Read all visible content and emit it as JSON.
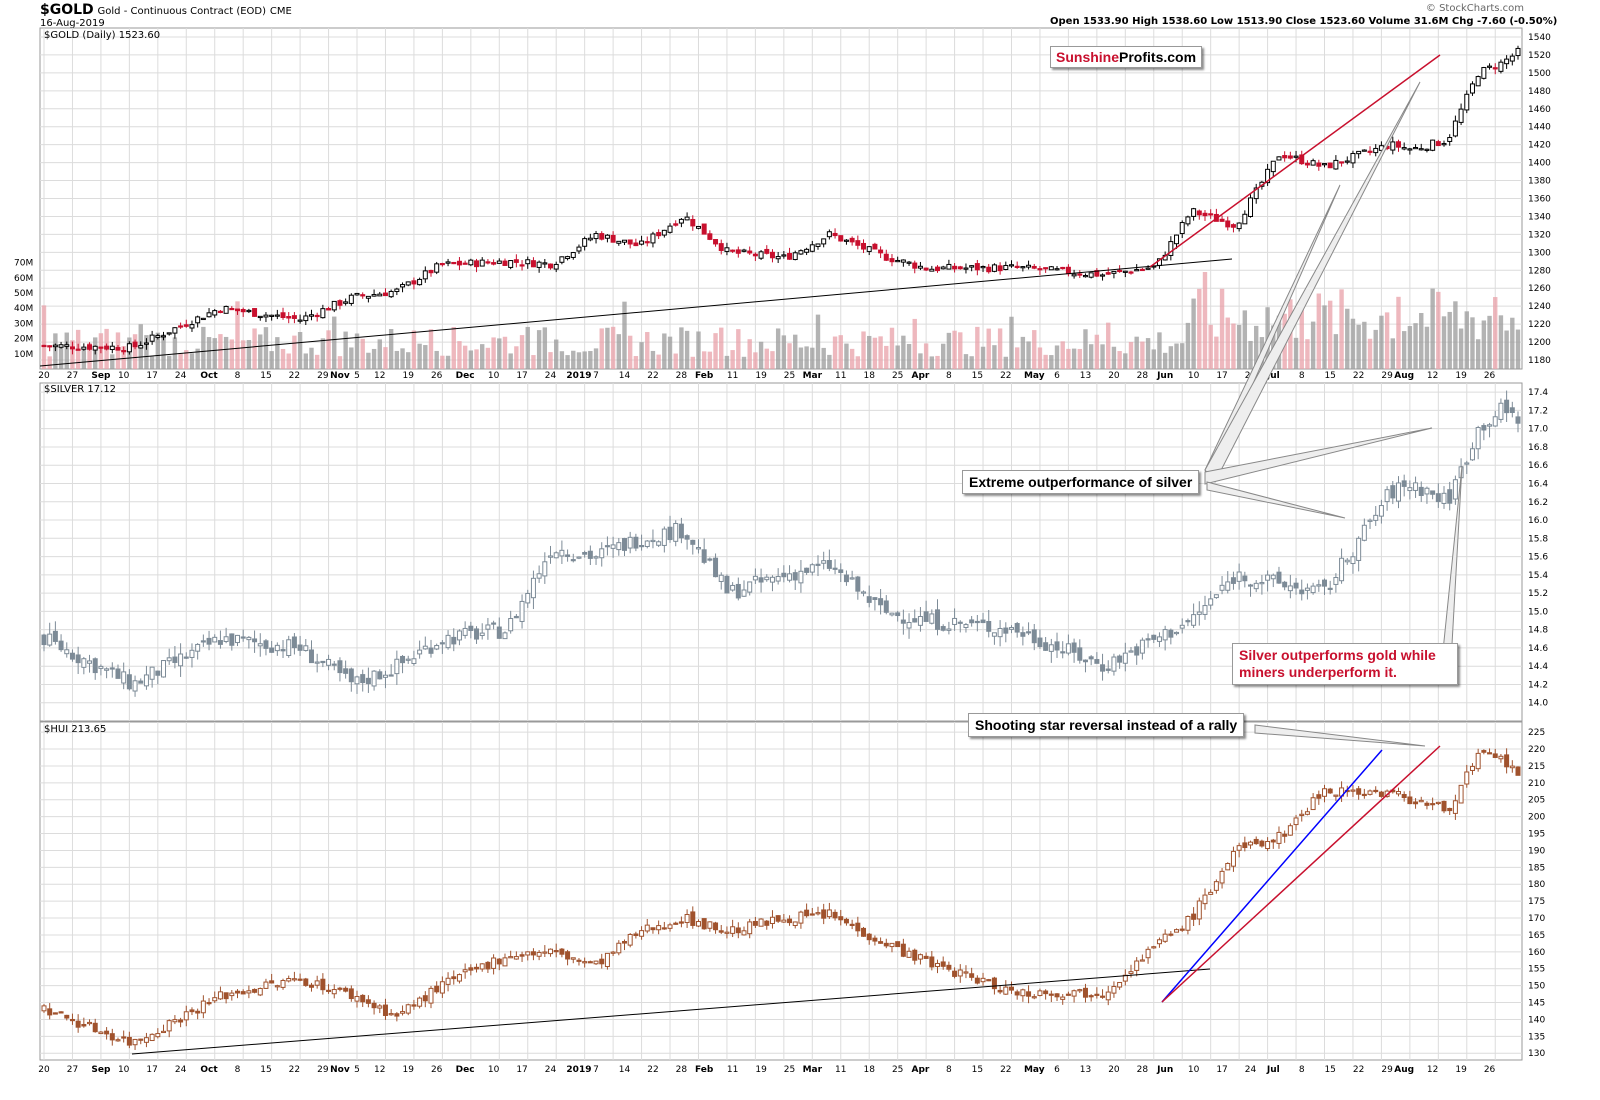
{
  "header": {
    "symbol": "$GOLD",
    "description": "Gold - Continuous Contract (EOD)",
    "exchange": "CME",
    "date": "16-Aug-2019",
    "ohlc": "Open 1533.90  High 1538.60  Low 1513.90  Close 1523.60  Volume 31.6M  Chg -7.60 (-0.50%)",
    "watermark": "© StockCharts.com",
    "logo_a": "Sunshine",
    "logo_b": "Profits.com"
  },
  "colors": {
    "up": "#000000",
    "down": "#c8102e",
    "silver": "#7d8b97",
    "hui": "#a0522d",
    "grid": "#dcdcdc",
    "trend_red": "#c8102e",
    "trend_blue": "#0000ff"
  },
  "annotations": {
    "silver_outperf": "Extreme outperformance of silver",
    "silver_vs_miners": "Silver outperforms gold while miners underperform it.",
    "shooting_star": "Shooting star reversal instead of a rally"
  },
  "chart_data": [
    {
      "type": "candlestick",
      "title": "$GOLD (Daily) 1523.60",
      "ylim": [
        1170,
        1550
      ],
      "yticks": [
        1180,
        1200,
        1220,
        1240,
        1260,
        1280,
        1300,
        1320,
        1340,
        1360,
        1380,
        1400,
        1420,
        1440,
        1460,
        1480,
        1500,
        1520,
        1540
      ],
      "volume_ticks": [
        "10M",
        "20M",
        "30M",
        "40M",
        "50M",
        "60M",
        "70M"
      ],
      "anchors": [
        [
          0,
          1196
        ],
        [
          20,
          1194
        ],
        [
          40,
          1238
        ],
        [
          58,
          1225
        ],
        [
          70,
          1250
        ],
        [
          80,
          1257
        ],
        [
          90,
          1286
        ],
        [
          105,
          1290
        ],
        [
          115,
          1287
        ],
        [
          125,
          1320
        ],
        [
          135,
          1307
        ],
        [
          145,
          1341
        ],
        [
          155,
          1300
        ],
        [
          168,
          1294
        ],
        [
          178,
          1320
        ],
        [
          190,
          1296
        ],
        [
          200,
          1282
        ],
        [
          220,
          1283
        ],
        [
          240,
          1275
        ],
        [
          252,
          1284
        ],
        [
          260,
          1346
        ],
        [
          270,
          1330
        ],
        [
          280,
          1410
        ],
        [
          290,
          1395
        ],
        [
          305,
          1420
        ],
        [
          310,
          1415
        ],
        [
          318,
          1425
        ],
        [
          325,
          1500
        ],
        [
          330,
          1510
        ],
        [
          334,
          1523
        ]
      ]
    },
    {
      "type": "candlestick",
      "title": "$SILVER 17.12",
      "ylim": [
        13.8,
        17.5
      ],
      "yticks": [
        14.0,
        14.2,
        14.4,
        14.6,
        14.8,
        15.0,
        15.2,
        15.4,
        15.6,
        15.8,
        16.0,
        16.2,
        16.4,
        16.6,
        16.8,
        17.0,
        17.2,
        17.4
      ],
      "anchors": [
        [
          0,
          14.7
        ],
        [
          20,
          14.2
        ],
        [
          40,
          14.7
        ],
        [
          58,
          14.6
        ],
        [
          70,
          14.2
        ],
        [
          80,
          14.4
        ],
        [
          90,
          14.7
        ],
        [
          105,
          14.8
        ],
        [
          115,
          15.7
        ],
        [
          125,
          15.6
        ],
        [
          135,
          15.8
        ],
        [
          145,
          15.9
        ],
        [
          155,
          15.2
        ],
        [
          168,
          15.4
        ],
        [
          178,
          15.5
        ],
        [
          190,
          15.0
        ],
        [
          200,
          14.9
        ],
        [
          220,
          14.8
        ],
        [
          240,
          14.4
        ],
        [
          252,
          14.7
        ],
        [
          260,
          14.9
        ],
        [
          270,
          15.4
        ],
        [
          280,
          15.3
        ],
        [
          290,
          15.2
        ],
        [
          305,
          16.3
        ],
        [
          310,
          16.4
        ],
        [
          318,
          16.2
        ],
        [
          325,
          17.0
        ],
        [
          330,
          17.2
        ],
        [
          334,
          17.12
        ]
      ]
    },
    {
      "type": "candlestick",
      "title": "$HUI 213.65",
      "ylim": [
        128,
        228
      ],
      "yticks": [
        130,
        135,
        140,
        145,
        150,
        155,
        160,
        165,
        170,
        175,
        180,
        185,
        190,
        195,
        200,
        205,
        210,
        215,
        220,
        225
      ],
      "anchors": [
        [
          0,
          143
        ],
        [
          20,
          133
        ],
        [
          40,
          147
        ],
        [
          58,
          152
        ],
        [
          70,
          147
        ],
        [
          80,
          141
        ],
        [
          90,
          150
        ],
        [
          105,
          159
        ],
        [
          115,
          160
        ],
        [
          125,
          156
        ],
        [
          135,
          166
        ],
        [
          145,
          170
        ],
        [
          155,
          166
        ],
        [
          168,
          170
        ],
        [
          178,
          171
        ],
        [
          190,
          163
        ],
        [
          200,
          157
        ],
        [
          220,
          148
        ],
        [
          240,
          148
        ],
        [
          252,
          162
        ],
        [
          260,
          170
        ],
        [
          270,
          190
        ],
        [
          280,
          194
        ],
        [
          290,
          208
        ],
        [
          305,
          207
        ],
        [
          310,
          205
        ],
        [
          318,
          202
        ],
        [
          325,
          218
        ],
        [
          330,
          217
        ],
        [
          334,
          213
        ]
      ]
    }
  ],
  "x_axis": {
    "labels": [
      {
        "i": 0,
        "t": "20"
      },
      {
        "i": 5,
        "t": "27"
      },
      {
        "i": 10,
        "t": "Sep"
      },
      {
        "i": 14,
        "t": "10"
      },
      {
        "i": 19,
        "t": "17"
      },
      {
        "i": 24,
        "t": "24"
      },
      {
        "i": 29,
        "t": "Oct"
      },
      {
        "i": 34,
        "t": "8"
      },
      {
        "i": 39,
        "t": "15"
      },
      {
        "i": 44,
        "t": "22"
      },
      {
        "i": 49,
        "t": "29"
      },
      {
        "i": 52,
        "t": "Nov"
      },
      {
        "i": 55,
        "t": "5"
      },
      {
        "i": 59,
        "t": "12"
      },
      {
        "i": 64,
        "t": "19"
      },
      {
        "i": 69,
        "t": "26"
      },
      {
        "i": 74,
        "t": "Dec"
      },
      {
        "i": 79,
        "t": "10"
      },
      {
        "i": 84,
        "t": "17"
      },
      {
        "i": 89,
        "t": "24"
      },
      {
        "i": 94,
        "t": "2019"
      },
      {
        "i": 97,
        "t": "7"
      },
      {
        "i": 102,
        "t": "14"
      },
      {
        "i": 107,
        "t": "22"
      },
      {
        "i": 112,
        "t": "28"
      },
      {
        "i": 116,
        "t": "Feb"
      },
      {
        "i": 121,
        "t": "11"
      },
      {
        "i": 126,
        "t": "19"
      },
      {
        "i": 131,
        "t": "25"
      },
      {
        "i": 135,
        "t": "Mar"
      },
      {
        "i": 140,
        "t": "11"
      },
      {
        "i": 145,
        "t": "18"
      },
      {
        "i": 150,
        "t": "25"
      },
      {
        "i": 154,
        "t": "Apr"
      },
      {
        "i": 159,
        "t": "8"
      },
      {
        "i": 164,
        "t": "15"
      },
      {
        "i": 169,
        "t": "22"
      },
      {
        "i": 174,
        "t": "May"
      },
      {
        "i": 178,
        "t": "6"
      },
      {
        "i": 183,
        "t": "13"
      },
      {
        "i": 188,
        "t": "20"
      },
      {
        "i": 193,
        "t": "28"
      },
      {
        "i": 197,
        "t": "Jun"
      },
      {
        "i": 202,
        "t": "10"
      },
      {
        "i": 207,
        "t": "17"
      },
      {
        "i": 212,
        "t": "24"
      },
      {
        "i": 216,
        "t": "Jul"
      },
      {
        "i": 221,
        "t": "8"
      },
      {
        "i": 226,
        "t": "15"
      },
      {
        "i": 231,
        "t": "22"
      },
      {
        "i": 236,
        "t": "29"
      },
      {
        "i": 239,
        "t": "Aug"
      },
      {
        "i": 244,
        "t": "12"
      },
      {
        "i": 249,
        "t": "19"
      },
      {
        "i": 254,
        "t": "26"
      }
    ]
  }
}
